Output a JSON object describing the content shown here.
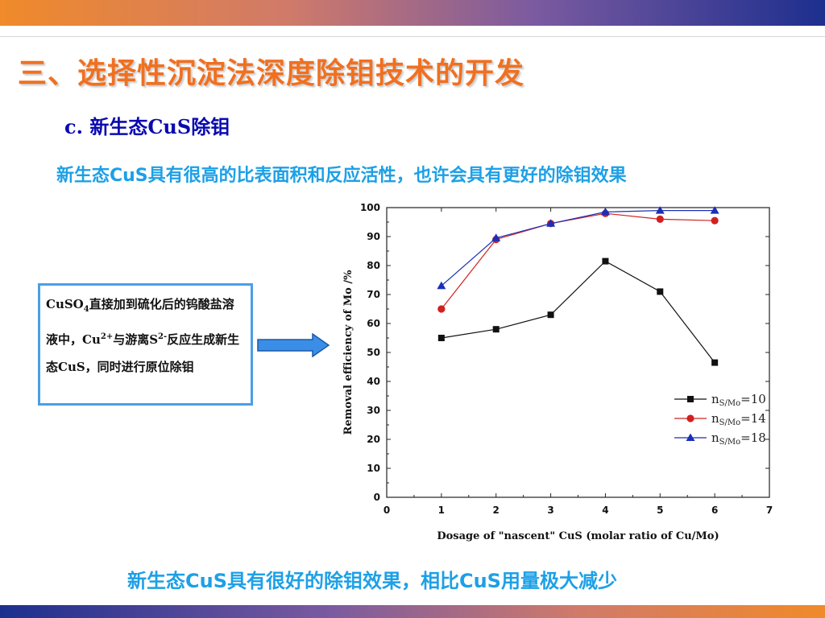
{
  "header": {
    "title": "三、选择性沉淀法深度除钼技术的开发",
    "subtitle": "c. 新生态CuS除钼",
    "lead": "新生态CuS具有很高的比表面积和反应活性，也许会具有更好的除钼效果"
  },
  "note": {
    "part1": "CuSO",
    "sub1": "4",
    "part2": "直接加到硫化后的钨酸盐溶液中，Cu",
    "sup1": "2+",
    "part3": "与游离S",
    "sup2": "2-",
    "part4": "反应生成新生态CuS，同时进行原位除钼"
  },
  "conclusion": "新生态CuS具有很好的除钼效果，相比CuS用量极大减少",
  "colors": {
    "title": "#f07020",
    "accent": "#1da0e6",
    "subtitle": "#0a0ab0",
    "box_border": "#4a9ee8",
    "arrow": "#3a8ee8"
  },
  "chart_data": {
    "type": "line",
    "xlabel": "Dosage of \"nascent\" CuS (molar ratio of Cu/Mo)",
    "ylabel": "Removal efficiency of Mo  /%",
    "xlim": [
      0,
      7
    ],
    "ylim": [
      0,
      100
    ],
    "xticks": [
      0,
      1,
      2,
      3,
      4,
      5,
      6,
      7
    ],
    "yticks": [
      0,
      10,
      20,
      30,
      40,
      50,
      60,
      70,
      80,
      90,
      100
    ],
    "legend_position": "bottom-right",
    "x": [
      1,
      2,
      3,
      4,
      5,
      6
    ],
    "series": [
      {
        "name_main": "n",
        "name_sub": "S/Mo",
        "name_suffix": "=10",
        "marker": "square",
        "color": "#111111",
        "values": [
          55,
          58,
          63,
          81.5,
          71,
          46.5
        ]
      },
      {
        "name_main": "n",
        "name_sub": "S/Mo",
        "name_suffix": "=14",
        "marker": "circle",
        "color": "#d02020",
        "values": [
          65,
          89,
          94.5,
          98,
          96,
          95.5
        ]
      },
      {
        "name_main": "n",
        "name_sub": "S/Mo",
        "name_suffix": "=18",
        "marker": "triangle",
        "color": "#1a2fb8",
        "values": [
          73,
          89.5,
          94.5,
          98.5,
          99,
          99
        ]
      }
    ]
  }
}
